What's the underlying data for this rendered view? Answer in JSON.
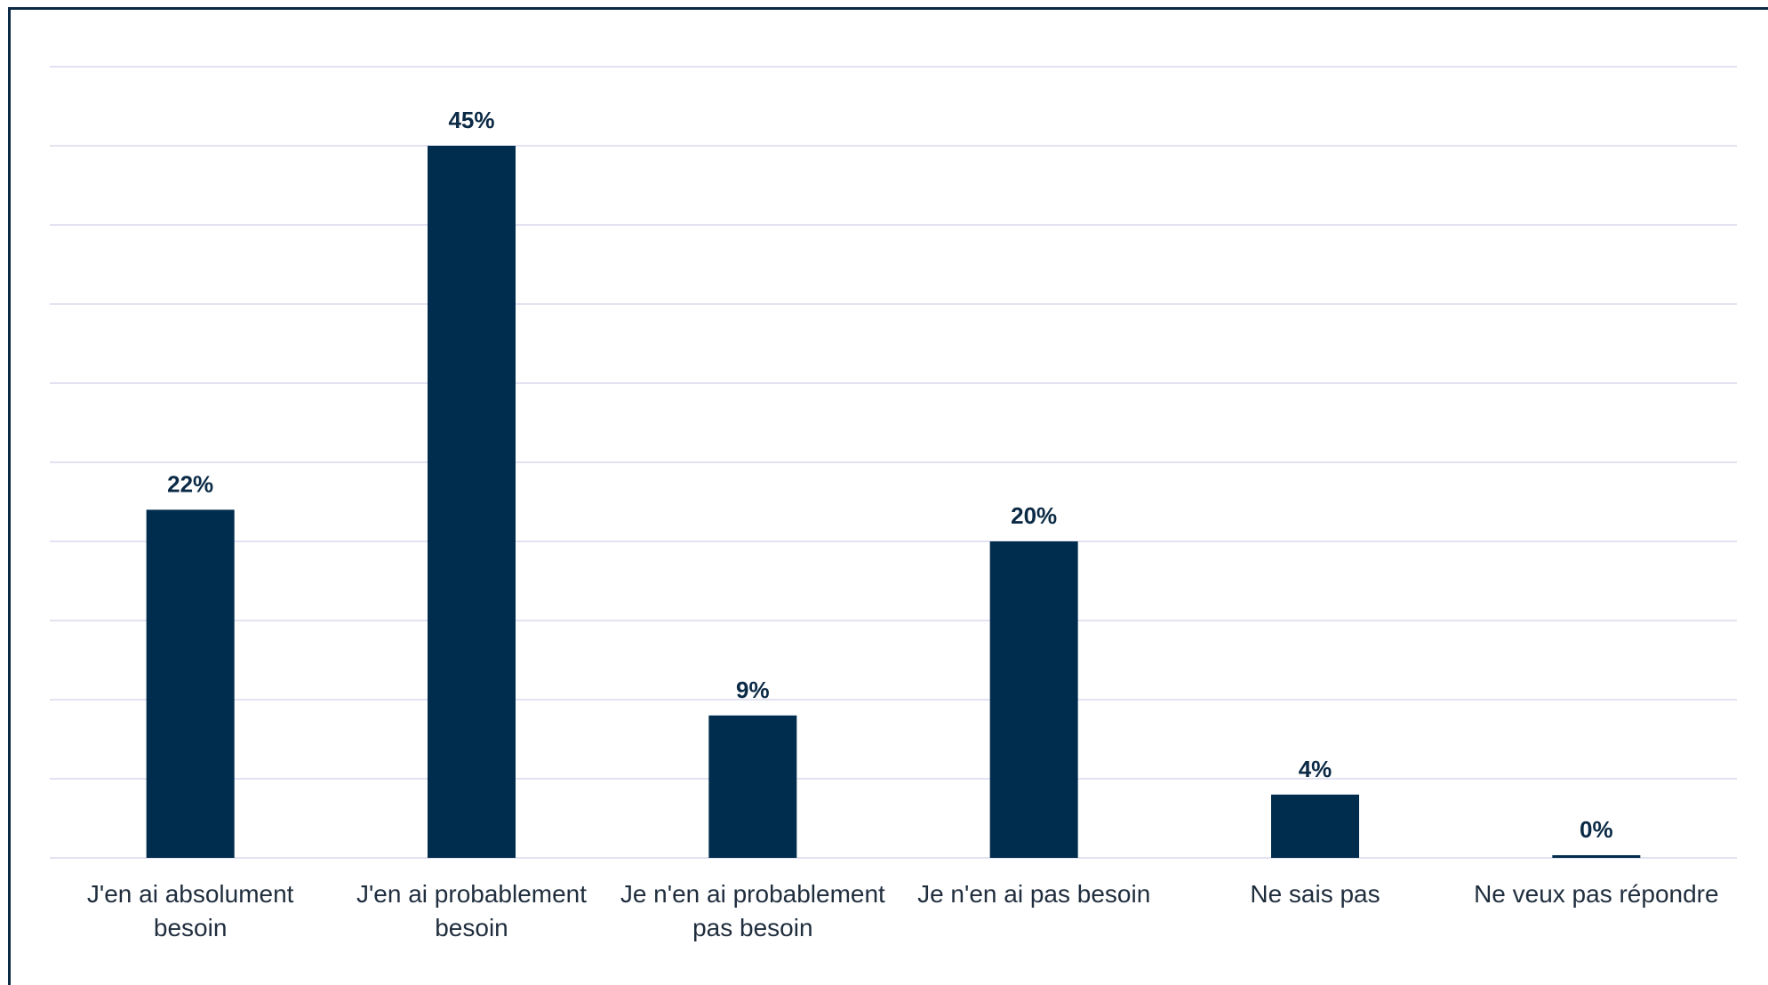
{
  "chart_data": {
    "type": "bar",
    "categories": [
      [
        "J'en ai absolument",
        "besoin"
      ],
      [
        "J'en ai probablement",
        "besoin"
      ],
      [
        "Je n'en ai probablement",
        "pas besoin"
      ],
      [
        "Je n'en ai pas besoin"
      ],
      [
        "Ne sais pas"
      ],
      [
        "Ne veux pas répondre"
      ]
    ],
    "values": [
      22,
      45,
      9,
      20,
      4,
      0
    ],
    "data_labels": [
      "22%",
      "45%",
      "9%",
      "20%",
      "4%",
      "0%"
    ],
    "title": "",
    "xlabel": "",
    "ylabel": "",
    "ylim": [
      0,
      50
    ],
    "grid": true,
    "legend": "none",
    "bar_color": "#002c4d"
  }
}
